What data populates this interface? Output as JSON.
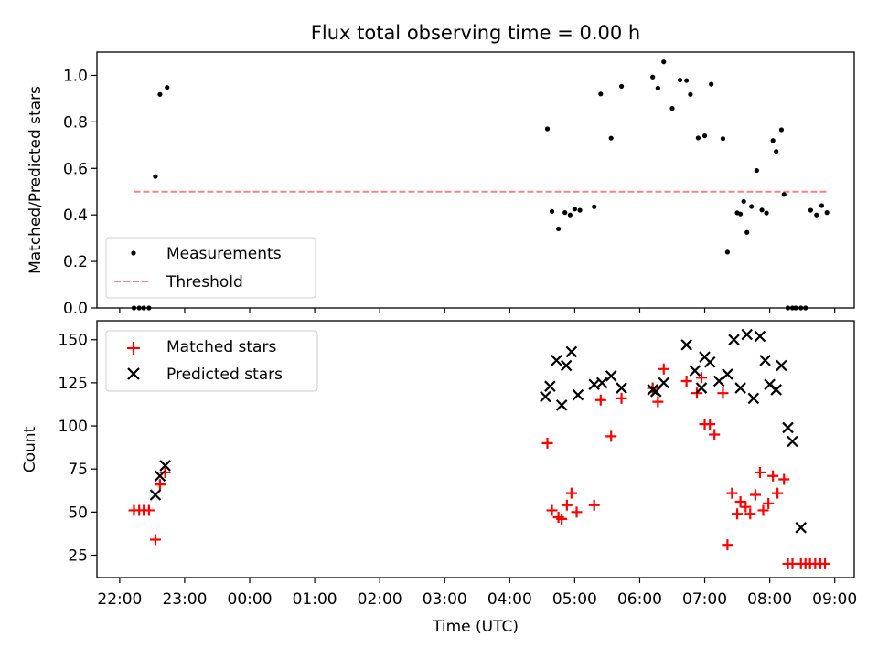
{
  "chart_data": {
    "title": "Flux total observing time = 0.00 h",
    "xlabel": "Time (UTC)",
    "x_ticks": [
      "22:00",
      "23:00",
      "00:00",
      "01:00",
      "02:00",
      "03:00",
      "04:00",
      "05:00",
      "06:00",
      "07:00",
      "08:00",
      "09:00"
    ],
    "x_range_hours": [
      -0.35,
      11.3
    ],
    "panels": [
      {
        "type": "scatter",
        "ylabel": "Matched/Predicted stars",
        "ylim": [
          0,
          1.1
        ],
        "y_ticks": [
          0.0,
          0.2,
          0.4,
          0.6,
          0.8,
          1.0
        ],
        "grid": false,
        "legend_position": "lower-left",
        "series": [
          {
            "name": "Measurements",
            "marker": "dot",
            "color": "#000000",
            "x": [
              0.22,
              0.3,
              0.37,
              0.45,
              0.55,
              0.62,
              0.73,
              6.58,
              6.65,
              6.75,
              6.85,
              6.93,
              7.0,
              7.08,
              7.3,
              7.4,
              7.56,
              7.72,
              8.2,
              8.28,
              8.37,
              8.5,
              8.62,
              8.72,
              8.78,
              8.9,
              9.0,
              9.1,
              9.28,
              9.35,
              9.5,
              9.55,
              9.6,
              9.65,
              9.72,
              9.8,
              9.88,
              9.95,
              10.05,
              10.1,
              10.18,
              10.22,
              10.28,
              10.35,
              10.4,
              10.48,
              10.55,
              10.63,
              10.72,
              10.8,
              10.88
            ],
            "y": [
              0,
              0,
              0,
              0,
              0.565,
              0.918,
              0.948,
              0.77,
              0.415,
              0.34,
              0.41,
              0.4,
              0.425,
              0.42,
              0.435,
              0.92,
              0.73,
              0.953,
              0.993,
              0.945,
              1.058,
              0.858,
              0.98,
              0.978,
              0.918,
              0.731,
              0.74,
              0.962,
              0.728,
              0.24,
              0.409,
              0.404,
              0.458,
              0.325,
              0.436,
              0.591,
              0.421,
              0.408,
              0.72,
              0.673,
              0.766,
              0.488,
              0,
              0,
              0,
              0,
              0,
              0.42,
              0.4,
              0.44,
              0.41
            ]
          },
          {
            "name": "Threshold",
            "style": "dashed",
            "color": "#ff8080",
            "x": [
              0.22,
              10.88
            ],
            "y": [
              0.5,
              0.5
            ]
          }
        ]
      },
      {
        "type": "scatter",
        "ylabel": "Count",
        "ylim": [
          12,
          161
        ],
        "y_ticks": [
          25,
          50,
          75,
          100,
          125,
          150
        ],
        "grid": false,
        "legend_position": "top-left",
        "series": [
          {
            "name": "Matched stars",
            "marker": "plus",
            "color": "#ff0000",
            "x": [
              0.22,
              0.3,
              0.37,
              0.45,
              0.55,
              0.62,
              0.7,
              6.58,
              6.65,
              6.75,
              6.8,
              6.88,
              6.95,
              7.03,
              7.3,
              7.4,
              7.56,
              7.72,
              8.2,
              8.28,
              8.37,
              8.72,
              8.88,
              8.95,
              9.0,
              9.08,
              9.15,
              9.28,
              9.35,
              9.42,
              9.5,
              9.55,
              9.63,
              9.7,
              9.78,
              9.85,
              9.9,
              9.98,
              10.05,
              10.12,
              10.22,
              10.28,
              10.35,
              10.48,
              10.55,
              10.62,
              10.7,
              10.78,
              10.85
            ],
            "y": [
              51,
              51,
              51,
              51,
              34,
              66,
              73,
              90,
              51,
              47,
              46,
              54,
              61,
              50,
              54,
              115,
              94,
              116,
              122,
              114,
              133,
              126,
              119,
              128,
              101,
              101,
              95,
              119,
              31,
              61,
              49,
              56,
              53,
              49,
              60,
              73,
              51,
              55,
              71,
              61,
              69,
              20,
              20,
              20,
              20,
              20,
              20,
              20,
              20
            ]
          },
          {
            "name": "Predicted stars",
            "marker": "x",
            "color": "#000000",
            "x": [
              0.55,
              0.62,
              0.7,
              6.55,
              6.62,
              6.72,
              6.8,
              6.87,
              6.95,
              7.05,
              7.3,
              7.42,
              7.56,
              7.72,
              8.2,
              8.25,
              8.37,
              8.72,
              8.85,
              8.95,
              9.0,
              9.08,
              9.22,
              9.35,
              9.45,
              9.55,
              9.65,
              9.75,
              9.85,
              9.93,
              10.0,
              10.1,
              10.18,
              10.28,
              10.35,
              10.48
            ],
            "y": [
              60,
              71,
              77,
              117,
              123,
              138,
              112,
              135,
              143,
              118,
              124,
              125,
              129,
              122,
              121,
              120,
              125,
              147,
              132,
              122,
              140,
              137,
              126,
              130,
              150,
              122,
              153,
              116,
              152,
              138,
              124,
              121,
              135,
              99,
              91,
              41
            ]
          }
        ]
      }
    ]
  }
}
